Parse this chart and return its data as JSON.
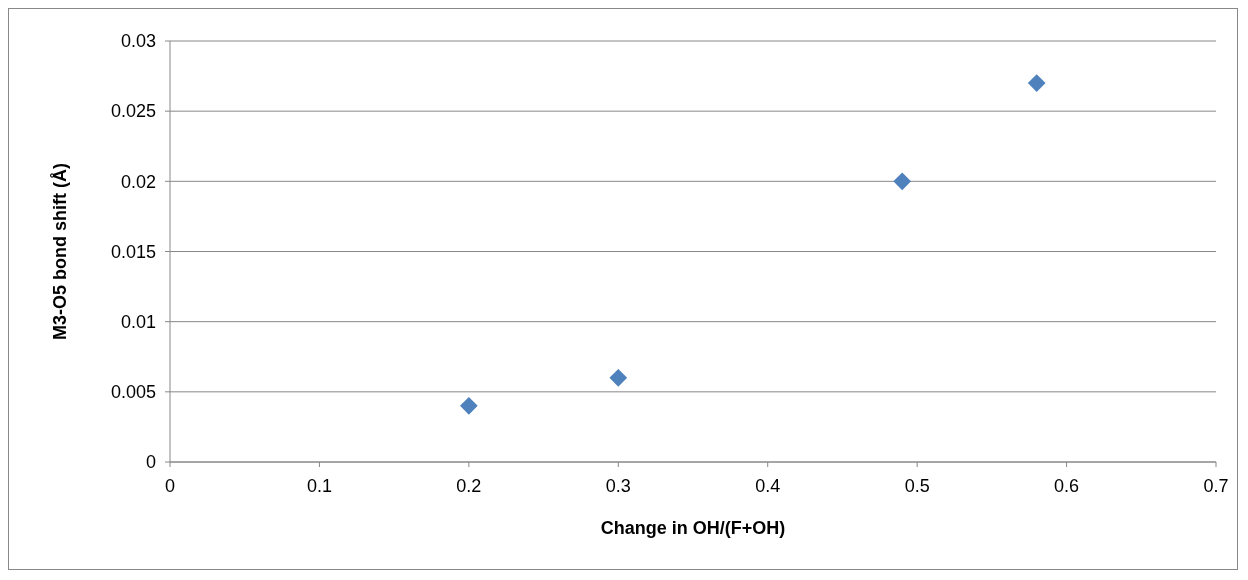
{
  "chart_data": {
    "type": "scatter",
    "xlabel": "Change in OH/(F+OH)",
    "ylabel": "M3-O5 bond shift (Å)",
    "x": [
      0.2,
      0.3,
      0.49,
      0.58
    ],
    "series": [
      {
        "color": "#4f81bd",
        "values": [
          0.004,
          0.006,
          0.02,
          0.027
        ]
      }
    ],
    "xlim": [
      0,
      0.7
    ],
    "xticks": [
      0,
      0.1,
      0.2,
      0.3,
      0.4,
      0.5,
      0.6,
      0.7
    ],
    "ylim": [
      0,
      0.03
    ],
    "yticks": [
      0,
      0.005,
      0.01,
      0.015,
      0.02,
      0.025,
      0.03
    ],
    "grid": "y",
    "marker": "diamond"
  }
}
